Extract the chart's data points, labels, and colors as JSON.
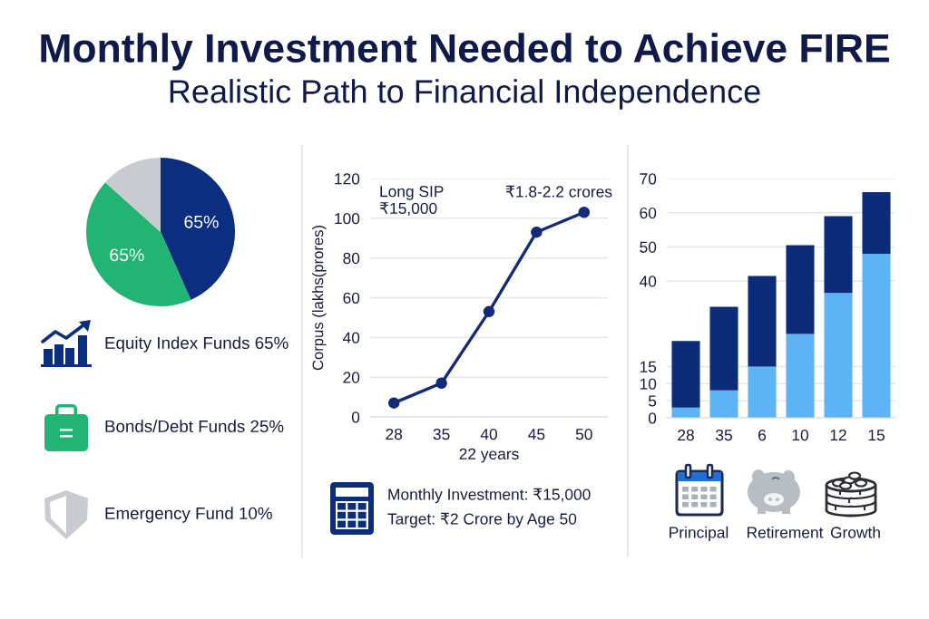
{
  "chart_data": [
    {
      "type": "pie",
      "title": "Monthly Investment Needed to Achieve FIRE",
      "subtitle": "Realistic Path to Financial Independence",
      "categories": [
        "Equity Index Funds 65%",
        "Bonds/Debt Funds 25%",
        "Emergency Fund 10%"
      ],
      "values": [
        65,
        65,
        20
      ],
      "value_labels": [
        "65%",
        "65%",
        null
      ],
      "colors": [
        "#0b2e80",
        "#22b472",
        "#c8cbcf"
      ],
      "legend": "bottom"
    },
    {
      "type": "line",
      "categories": [
        "28",
        "35",
        "40",
        "45",
        "50"
      ],
      "series": [
        {
          "color": "#13297a",
          "values": [
            7,
            17,
            53,
            93,
            103
          ]
        }
      ],
      "xlabel": "22 years",
      "ylabel": "Corpus (lakhs(prores)",
      "ylim": [
        0,
        120
      ],
      "yticks": [
        0,
        20,
        40,
        60,
        80,
        100,
        120
      ],
      "grid": "y",
      "marker": "circle",
      "line_style": "solid",
      "annotations": [
        "Long SIP\n₹15,000",
        "₹1.8-2.2 crores",
        "Monthly Investment: ₹15,000",
        "Target: ₹2 Crore by Age 50"
      ]
    },
    {
      "type": "bar",
      "stacked": true,
      "categories": [
        "28",
        "35",
        "6",
        "10",
        "12",
        "15"
      ],
      "series": [
        {
          "color": "#5db4f4",
          "values": [
            3,
            8,
            15,
            24.5,
            36.5,
            48
          ]
        },
        {
          "color": "#0c2b78",
          "values": [
            19.5,
            24.5,
            26.5,
            26,
            22.5,
            18
          ]
        }
      ],
      "ylim": [
        0,
        70
      ],
      "yticks": [
        0,
        5,
        10,
        15,
        40,
        50,
        60,
        70
      ],
      "grid": "y",
      "annotations": [
        "Principal",
        "Retirement",
        "Growth"
      ]
    }
  ]
}
